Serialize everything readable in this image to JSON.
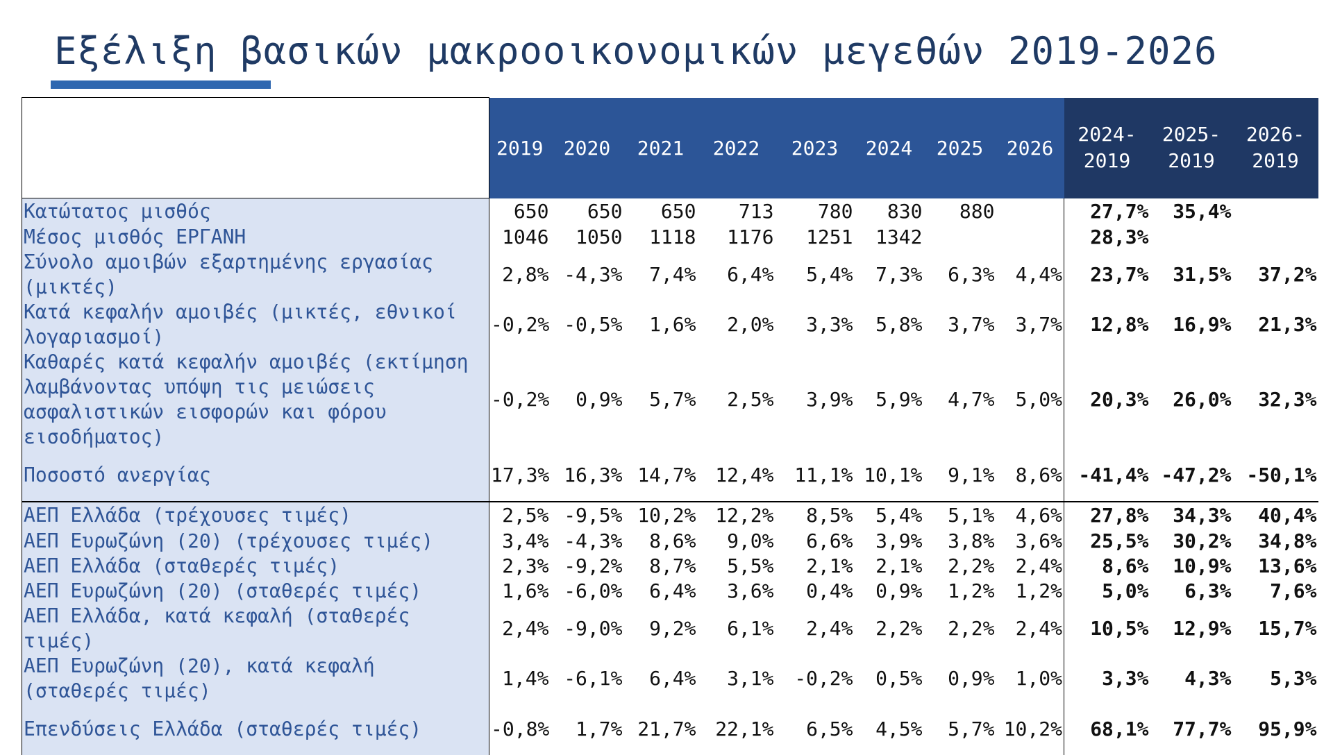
{
  "title": "Εξέλιξη βασικών μακροοικονομικών μεγεθών 2019-2026",
  "colors": {
    "header_blue": "#2c5597",
    "header_dark": "#1f3864",
    "label_bg": "#dae3f3",
    "label_text": "#2f5597",
    "title": "#1f3a64",
    "accent": "#2e67b0"
  },
  "table": {
    "columns": [
      "2019",
      "2020",
      "2021",
      "2022",
      "2023",
      "2024",
      "2025",
      "2026"
    ],
    "delta_columns": [
      [
        "2024-",
        "2019"
      ],
      [
        "2025-",
        "2019"
      ],
      [
        "2026-",
        "2019"
      ]
    ],
    "rows": [
      {
        "label": "Κατώτατος μισθός",
        "values": [
          "650",
          "650",
          "650",
          "713",
          "780",
          "830",
          "880",
          ""
        ],
        "deltas": [
          "27,7%",
          "35,4%",
          ""
        ]
      },
      {
        "label": "Μέσος μισθός ΕΡΓΑΝΗ",
        "values": [
          "1046",
          "1050",
          "1118",
          "1176",
          "1251",
          "1342",
          "",
          ""
        ],
        "deltas": [
          "28,3%",
          "",
          ""
        ]
      },
      {
        "label": "Σύνολο αμοιβών εξαρτημένης εργασίας (μικτές)",
        "values": [
          "2,8%",
          "-4,3%",
          "7,4%",
          "6,4%",
          "5,4%",
          "7,3%",
          "6,3%",
          "4,4%"
        ],
        "deltas": [
          "23,7%",
          "31,5%",
          "37,2%"
        ]
      },
      {
        "label": "Κατά κεφαλήν αμοιβές (μικτές, εθνικοί λογαριασμοί)",
        "values": [
          "-0,2%",
          "-0,5%",
          "1,6%",
          "2,0%",
          "3,3%",
          "5,8%",
          "3,7%",
          "3,7%"
        ],
        "deltas": [
          "12,8%",
          "16,9%",
          "21,3%"
        ]
      },
      {
        "label": "Καθαρές κατά κεφαλήν αμοιβές (εκτίμηση λαμβάνοντας υπόψη τις μειώσεις ασφαλιστικών εισφορών και φόρου εισοδήματος)",
        "values": [
          "-0,2%",
          "0,9%",
          "5,7%",
          "2,5%",
          "3,9%",
          "5,9%",
          "4,7%",
          "5,0%"
        ],
        "deltas": [
          "20,3%",
          "26,0%",
          "32,3%"
        ]
      },
      {
        "label": "Ποσοστό ανεργίας",
        "values": [
          "17,3%",
          "16,3%",
          "14,7%",
          "12,4%",
          "11,1%",
          "10,1%",
          "9,1%",
          "8,6%"
        ],
        "deltas": [
          "-41,4%",
          "-47,2%",
          "-50,1%"
        ]
      },
      {
        "label": "ΑΕΠ Ελλάδα (τρέχουσες τιμές)",
        "values": [
          "2,5%",
          "-9,5%",
          "10,2%",
          "12,2%",
          "8,5%",
          "5,4%",
          "5,1%",
          "4,6%"
        ],
        "deltas": [
          "27,8%",
          "34,3%",
          "40,4%"
        ]
      },
      {
        "label": "ΑΕΠ Ευρωζώνη (20) (τρέχουσες τιμές)",
        "values": [
          "3,4%",
          "-4,3%",
          "8,6%",
          "9,0%",
          "6,6%",
          "3,9%",
          "3,8%",
          "3,6%"
        ],
        "deltas": [
          "25,5%",
          "30,2%",
          "34,8%"
        ]
      },
      {
        "label": "ΑΕΠ Ελλάδα (σταθερές τιμές)",
        "values": [
          "2,3%",
          "-9,2%",
          "8,7%",
          "5,5%",
          "2,1%",
          "2,1%",
          "2,2%",
          "2,4%"
        ],
        "deltas": [
          "8,6%",
          "10,9%",
          "13,6%"
        ]
      },
      {
        "label": "ΑΕΠ Ευρωζώνη (20) (σταθερές τιμές)",
        "values": [
          "1,6%",
          "-6,0%",
          "6,4%",
          "3,6%",
          "0,4%",
          "0,9%",
          "1,2%",
          "1,2%"
        ],
        "deltas": [
          "5,0%",
          "6,3%",
          "7,6%"
        ]
      },
      {
        "label": "ΑΕΠ Ελλάδα, κατά κεφαλή (σταθερές τιμές)",
        "values": [
          "2,4%",
          "-9,0%",
          "9,2%",
          "6,1%",
          "2,4%",
          "2,2%",
          "2,2%",
          "2,4%"
        ],
        "deltas": [
          "10,5%",
          "12,9%",
          "15,7%"
        ]
      },
      {
        "label": "ΑΕΠ Ευρωζώνη (20), κατά κεφαλή (σταθερές τιμές)",
        "values": [
          "1,4%",
          "-6,1%",
          "6,4%",
          "3,1%",
          "-0,2%",
          "0,5%",
          "0,9%",
          "1,0%"
        ],
        "deltas": [
          "3,3%",
          "4,3%",
          "5,3%"
        ]
      },
      {
        "label": "Επενδύσεις Ελλάδα (σταθερές τιμές)",
        "values": [
          "-0,8%",
          "1,7%",
          "21,7%",
          "22,1%",
          "6,5%",
          "4,5%",
          "5,7%",
          "10,2%"
        ],
        "deltas": [
          "68,1%",
          "77,7%",
          "95,9%"
        ]
      }
    ]
  }
}
